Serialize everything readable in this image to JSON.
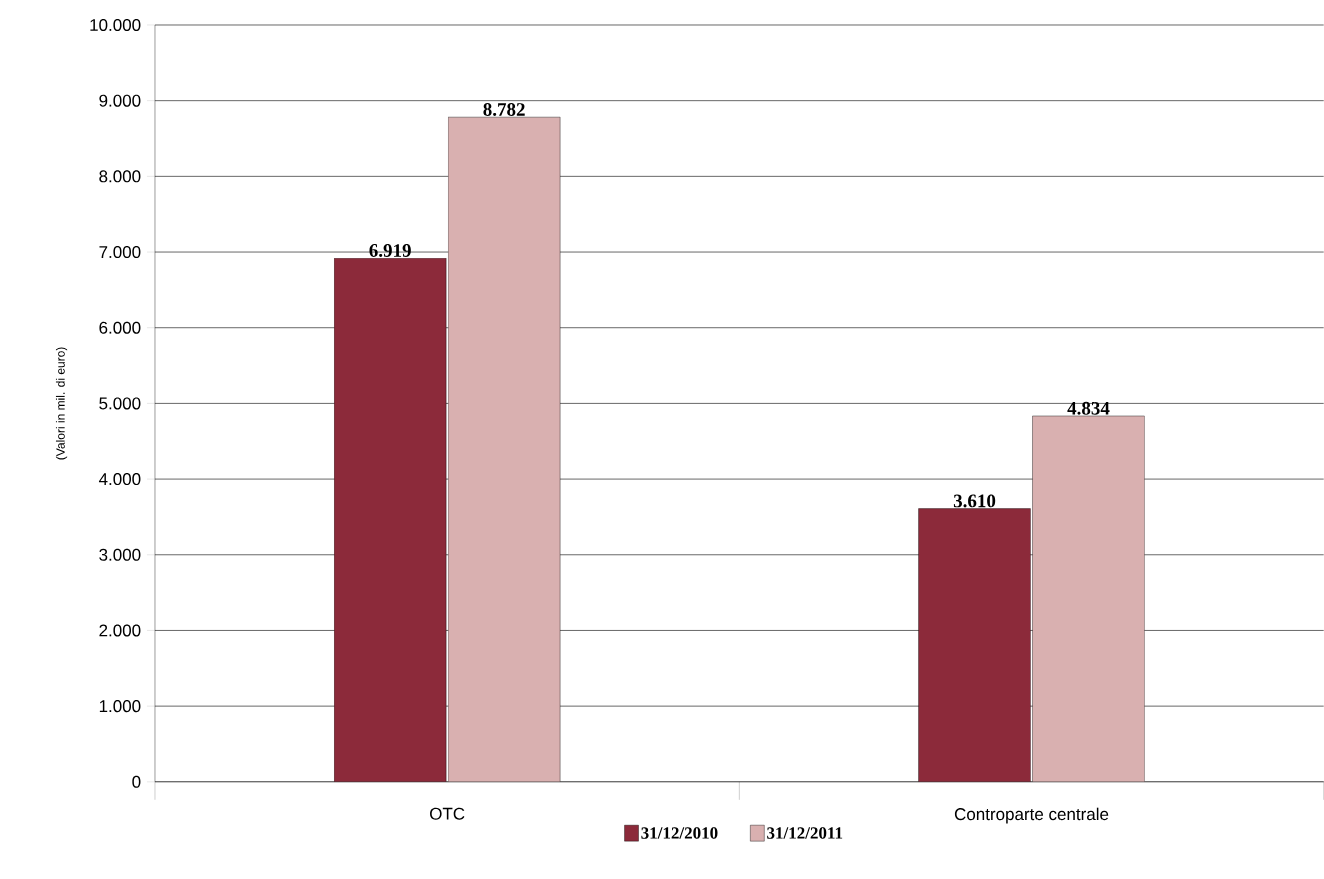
{
  "chart_data": {
    "type": "bar",
    "ylabel": "(Valori in mil. di euro)",
    "categories": [
      "OTC",
      "Controparte centrale"
    ],
    "series": [
      {
        "name": "31/12/2010",
        "color": "#8c2a3a",
        "values": [
          6919,
          3610
        ],
        "value_labels": [
          "6.919",
          "3.610"
        ]
      },
      {
        "name": "31/12/2011",
        "color": "#d9b0b0",
        "values": [
          8782,
          4834
        ],
        "value_labels": [
          "8.782",
          "4.834"
        ]
      }
    ],
    "ylim": [
      0,
      10000
    ],
    "yticks": [
      0,
      {
        "value": 1000,
        "label": "1.000"
      },
      {
        "value": 2000,
        "label": "2.000"
      },
      {
        "value": 3000,
        "label": "3.000"
      },
      {
        "value": 4000,
        "label": "4.000"
      },
      {
        "value": 5000,
        "label": "5.000"
      },
      {
        "value": 6000,
        "label": "6.000"
      },
      {
        "value": 7000,
        "label": "7.000"
      },
      {
        "value": 8000,
        "label": "8.000"
      },
      {
        "value": 9000,
        "label": "9.000"
      },
      {
        "value": 10000,
        "label": "10.000"
      }
    ],
    "grid": "y",
    "legend": "bottom"
  }
}
